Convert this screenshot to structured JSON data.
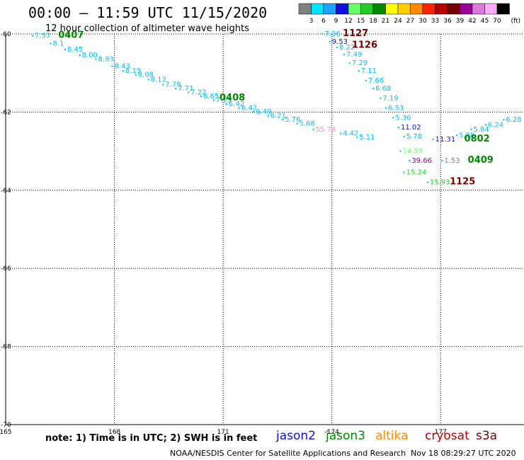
{
  "header": {
    "title": "00:00 – 11:59 UTC 11/15/2020",
    "subtitle": "12 hour collection of altimeter wave heights"
  },
  "legend": {
    "unit": "(ft)",
    "bins": [
      {
        "label": "3",
        "color": "#808080"
      },
      {
        "label": "6",
        "color": "#00e5ff"
      },
      {
        "label": "9",
        "color": "#1aa3ff"
      },
      {
        "label": "12",
        "color": "#1010e0"
      },
      {
        "label": "15",
        "color": "#66ff66"
      },
      {
        "label": "18",
        "color": "#22cc22"
      },
      {
        "label": "21",
        "color": "#008800"
      },
      {
        "label": "24",
        "color": "#ffff00"
      },
      {
        "label": "27",
        "color": "#ffcc00"
      },
      {
        "label": "30",
        "color": "#ff8800"
      },
      {
        "label": "33",
        "color": "#ff2200"
      },
      {
        "label": "36",
        "color": "#bb0000"
      },
      {
        "label": "39",
        "color": "#770000"
      },
      {
        "label": "42",
        "color": "#990099"
      },
      {
        "label": "45",
        "color": "#dd77dd"
      },
      {
        "label": "70",
        "color": "#ffaaff"
      },
      {
        "label": "",
        "color": "#000000"
      }
    ]
  },
  "map": {
    "lon_range": [
      165,
      179.3
    ],
    "lat_range": [
      -60,
      -70
    ],
    "lon_ticks": [
      {
        "lon": 165,
        "label": "165"
      },
      {
        "lon": 168,
        "label": "168"
      },
      {
        "lon": 171,
        "label": "171"
      },
      {
        "lon": 174,
        "label": "-174"
      },
      {
        "lon": 177,
        "label": "177"
      }
    ],
    "lat_ticks": [
      {
        "lat": -60,
        "label": "-60"
      },
      {
        "lat": -62,
        "label": "-62"
      },
      {
        "lat": -64,
        "label": "-64"
      },
      {
        "lat": -66,
        "label": "-66"
      },
      {
        "lat": -68,
        "label": "-68"
      },
      {
        "lat": -70,
        "label": "-70"
      }
    ],
    "grid": "dotted",
    "track_color": "#00bfff"
  },
  "chart_data": {
    "type": "scatter",
    "x_label": "longitude",
    "y_label": "latitude",
    "measurements": [
      {
        "lon": 165.8,
        "lat": -60.1,
        "value": "7.57",
        "color": "#00bfff"
      },
      {
        "lon": 166.3,
        "lat": -60.3,
        "value": "8.1",
        "color": "#00bfff"
      },
      {
        "lon": 166.7,
        "lat": -60.45,
        "value": "8.45",
        "color": "#00bfff"
      },
      {
        "lon": 167.1,
        "lat": -60.6,
        "value": "8.00",
        "color": "#00bfff"
      },
      {
        "lon": 167.55,
        "lat": -60.7,
        "value": "8.93",
        "color": "#00bfff"
      },
      {
        "lon": 168.0,
        "lat": -60.88,
        "value": "8.43",
        "color": "#00bfff"
      },
      {
        "lon": 168.3,
        "lat": -61.0,
        "value": "8.19",
        "color": "#00bfff"
      },
      {
        "lon": 168.65,
        "lat": -61.1,
        "value": "8.08",
        "color": "#00bfff"
      },
      {
        "lon": 169.0,
        "lat": -61.22,
        "value": "8.12",
        "color": "#00bfff"
      },
      {
        "lon": 169.4,
        "lat": -61.35,
        "value": "7.79",
        "color": "#00bfff"
      },
      {
        "lon": 169.75,
        "lat": -61.45,
        "value": "7.71",
        "color": "#00bfff"
      },
      {
        "lon": 170.1,
        "lat": -61.55,
        "value": "7.22",
        "color": "#00bfff"
      },
      {
        "lon": 170.45,
        "lat": -61.65,
        "value": "6.65",
        "color": "#00bfff"
      },
      {
        "lon": 170.8,
        "lat": -61.75,
        "value": "7.15",
        "color": "#00bfff"
      },
      {
        "lon": 171.15,
        "lat": -61.85,
        "value": "6.42",
        "color": "#00bfff"
      },
      {
        "lon": 171.5,
        "lat": -61.95,
        "value": "6.42",
        "color": "#00bfff"
      },
      {
        "lon": 171.9,
        "lat": -62.05,
        "value": "6.49",
        "color": "#00bfff"
      },
      {
        "lon": 172.3,
        "lat": -62.15,
        "value": "6.21",
        "color": "#00bfff"
      },
      {
        "lon": 172.7,
        "lat": -62.25,
        "value": "5.76",
        "color": "#00bfff"
      },
      {
        "lon": 173.1,
        "lat": -62.35,
        "value": "5.68",
        "color": "#00bfff"
      },
      {
        "lon": 173.55,
        "lat": -62.5,
        "value": "55.78",
        "color": "#ff88dd"
      },
      {
        "lon": 174.3,
        "lat": -62.6,
        "value": "4.42",
        "color": "#00bfff"
      },
      {
        "lon": 174.75,
        "lat": -62.7,
        "value": "5.11",
        "color": "#00bfff"
      },
      {
        "lon": 173.8,
        "lat": -60.05,
        "value": "7.96",
        "color": "#00bfff"
      },
      {
        "lon": 174.0,
        "lat": -60.25,
        "value": "9.53",
        "color": "#1010e0"
      },
      {
        "lon": 174.2,
        "lat": -60.4,
        "value": "8.22",
        "color": "#00bfff"
      },
      {
        "lon": 174.4,
        "lat": -60.58,
        "value": "7.49",
        "color": "#00bfff"
      },
      {
        "lon": 174.55,
        "lat": -60.8,
        "value": "7.29",
        "color": "#00bfff"
      },
      {
        "lon": 174.8,
        "lat": -61.0,
        "value": "7.11",
        "color": "#00bfff"
      },
      {
        "lon": 175.0,
        "lat": -61.25,
        "value": "7.66",
        "color": "#00bfff"
      },
      {
        "lon": 175.2,
        "lat": -61.45,
        "value": "6.68",
        "color": "#00bfff"
      },
      {
        "lon": 175.4,
        "lat": -61.7,
        "value": "7.19",
        "color": "#00bfff"
      },
      {
        "lon": 175.55,
        "lat": -61.95,
        "value": "6.53",
        "color": "#00bfff"
      },
      {
        "lon": 175.75,
        "lat": -62.2,
        "value": "5.36",
        "color": "#00bfff"
      },
      {
        "lon": 175.9,
        "lat": -62.45,
        "value": "11.02",
        "color": "#1010e0"
      },
      {
        "lon": 176.05,
        "lat": -62.68,
        "value": "5.78",
        "color": "#00bfff"
      },
      {
        "lon": 175.95,
        "lat": -63.05,
        "value": "14.59",
        "color": "#66ff66"
      },
      {
        "lon": 176.2,
        "lat": -63.3,
        "value": "39.66",
        "color": "#990099"
      },
      {
        "lon": 176.05,
        "lat": -63.6,
        "value": "15.24",
        "color": "#22cc22"
      },
      {
        "lon": 176.7,
        "lat": -63.85,
        "value": "15.93",
        "color": "#22cc22"
      },
      {
        "lon": 176.85,
        "lat": -62.75,
        "value": "11.31",
        "color": "#1010e0"
      },
      {
        "lon": 177.5,
        "lat": -62.65,
        "value": "5.28",
        "color": "#00bfff"
      },
      {
        "lon": 177.9,
        "lat": -62.5,
        "value": "5.84",
        "color": "#00bfff"
      },
      {
        "lon": 178.3,
        "lat": -62.38,
        "value": "6.24",
        "color": "#00bfff"
      },
      {
        "lon": 178.8,
        "lat": -62.25,
        "value": "6.28",
        "color": "#00bfff"
      },
      {
        "lon": 177.1,
        "lat": -63.3,
        "value": "1.53",
        "color": "#808080"
      }
    ],
    "pass_times": [
      {
        "lon": 166.45,
        "lat": -60.1,
        "label": "0407",
        "color": "#008800"
      },
      {
        "lon": 170.9,
        "lat": -61.7,
        "label": "0408",
        "color": "#008800"
      },
      {
        "lon": 174.3,
        "lat": -60.05,
        "label": "1127",
        "color": "#770000"
      },
      {
        "lon": 174.55,
        "lat": -60.35,
        "label": "1126",
        "color": "#770000"
      },
      {
        "lon": 177.65,
        "lat": -62.75,
        "label": "0802",
        "color": "#008800"
      },
      {
        "lon": 177.75,
        "lat": -63.3,
        "label": "0409",
        "color": "#008800"
      },
      {
        "lon": 177.25,
        "lat": -63.85,
        "label": "1125",
        "color": "#770000"
      }
    ]
  },
  "footer": {
    "note": "note: 1) Time is in UTC; 2) SWH is in feet",
    "missions": [
      {
        "name": "jason2",
        "color": "#1010e0"
      },
      {
        "name": "jason3",
        "color": "#008800"
      },
      {
        "name": "altika",
        "color": "#ff8800"
      },
      {
        "name": "cryosat",
        "color": "#bb0000"
      },
      {
        "name": "s3a",
        "color": "#770000"
      }
    ],
    "credit": "NOAA/NESDIS Center for Satellite Applications and Research",
    "timestamp": "Nov 18 08:29:27 UTC 2020"
  }
}
